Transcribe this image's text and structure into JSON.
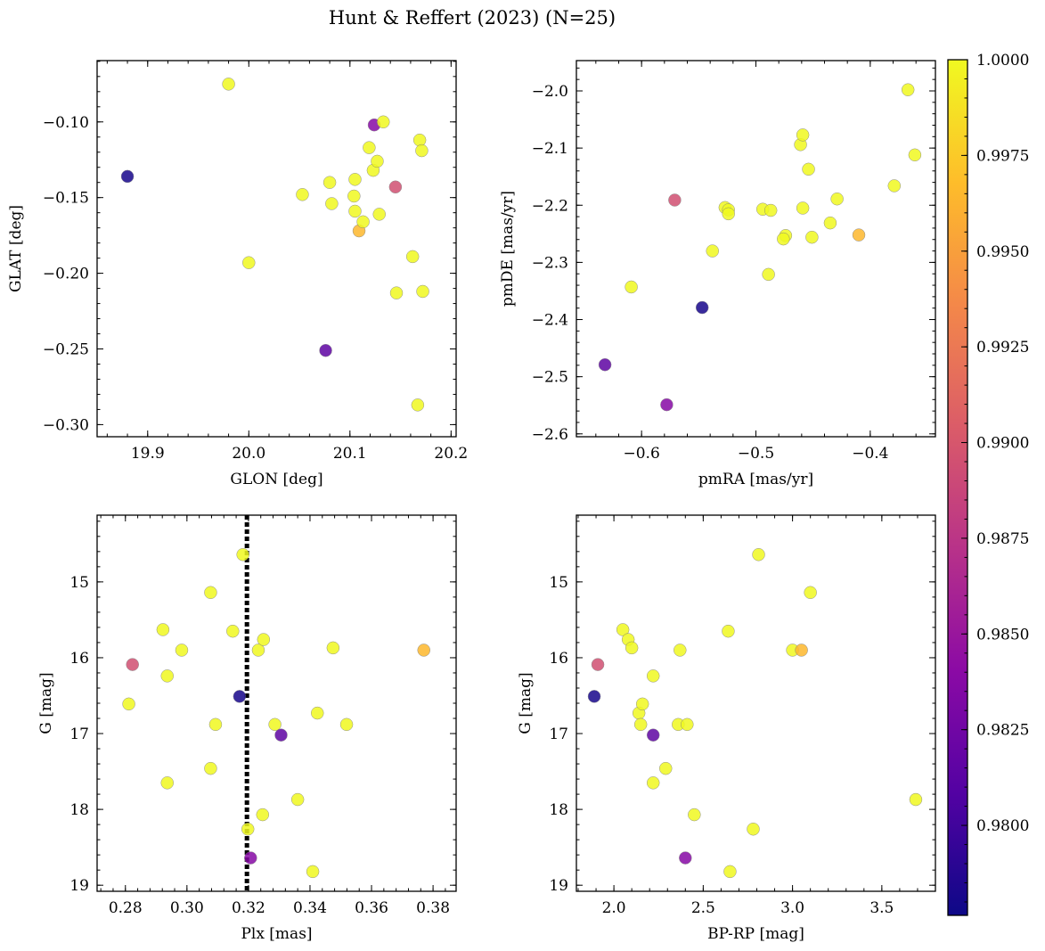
{
  "figure": {
    "suptitle": "Hunt & Reffert (2023) (N=25)"
  },
  "colormap": {
    "name": "plasma",
    "stops": [
      "#0d0887",
      "#5302a3",
      "#8b0aa5",
      "#b83289",
      "#db5c68",
      "#f48849",
      "#febd2a",
      "#f0f921"
    ],
    "range": [
      0.97765,
      1.0
    ],
    "tick_labels": [
      "0.9800",
      "0.9825",
      "0.9850",
      "0.9875",
      "0.9900",
      "0.9925",
      "0.9950",
      "0.9975",
      "1.0000"
    ],
    "tick_values": [
      0.98,
      0.9825,
      0.985,
      0.9875,
      0.99,
      0.9925,
      0.995,
      0.9975,
      1.0
    ]
  },
  "chart_data": [
    {
      "type": "scatter",
      "id": "glon-glat",
      "xlabel": "GLON [deg]",
      "ylabel": "GLAT [deg]",
      "xlim": [
        19.85,
        20.205
      ],
      "ylim": [
        -0.308,
        -0.0595
      ],
      "invert_y": false,
      "xticks": [
        19.9,
        20.0,
        20.1,
        20.2
      ],
      "xtick_labels": [
        "19.9",
        "20.0",
        "20.1",
        "20.2"
      ],
      "xminor_step": 0.02,
      "yticks": [
        -0.3,
        -0.25,
        -0.2,
        -0.15,
        -0.1
      ],
      "ytick_labels": [
        "−0.30",
        "−0.25",
        "−0.20",
        "−0.15",
        "−0.10"
      ],
      "yminor_step": 0.01,
      "points": [
        {
          "x": 19.98,
          "y": -0.075,
          "c": 1.0
        },
        {
          "x": 19.88,
          "y": -0.136,
          "c": 0.9781
        },
        {
          "x": 20.0,
          "y": -0.193,
          "c": 1.0
        },
        {
          "x": 20.053,
          "y": -0.148,
          "c": 1.0
        },
        {
          "x": 20.08,
          "y": -0.14,
          "c": 1.0
        },
        {
          "x": 20.082,
          "y": -0.154,
          "c": 1.0
        },
        {
          "x": 20.076,
          "y": -0.251,
          "c": 0.9815
        },
        {
          "x": 20.105,
          "y": -0.138,
          "c": 1.0
        },
        {
          "x": 20.104,
          "y": -0.149,
          "c": 1.0
        },
        {
          "x": 20.105,
          "y": -0.159,
          "c": 1.0
        },
        {
          "x": 20.109,
          "y": -0.172,
          "c": 0.9965
        },
        {
          "x": 20.113,
          "y": -0.166,
          "c": 1.0
        },
        {
          "x": 20.119,
          "y": -0.117,
          "c": 1.0
        },
        {
          "x": 20.123,
          "y": -0.132,
          "c": 1.0
        },
        {
          "x": 20.127,
          "y": -0.126,
          "c": 1.0
        },
        {
          "x": 20.129,
          "y": -0.161,
          "c": 1.0
        },
        {
          "x": 20.124,
          "y": -0.102,
          "c": 0.9838
        },
        {
          "x": 20.133,
          "y": -0.1,
          "c": 1.0
        },
        {
          "x": 20.145,
          "y": -0.143,
          "c": 0.9895
        },
        {
          "x": 20.146,
          "y": -0.213,
          "c": 1.0
        },
        {
          "x": 20.162,
          "y": -0.189,
          "c": 1.0
        },
        {
          "x": 20.167,
          "y": -0.287,
          "c": 1.0
        },
        {
          "x": 20.169,
          "y": -0.112,
          "c": 1.0
        },
        {
          "x": 20.171,
          "y": -0.119,
          "c": 1.0
        },
        {
          "x": 20.172,
          "y": -0.212,
          "c": 1.0
        }
      ]
    },
    {
      "type": "scatter",
      "id": "pmra-pmde",
      "xlabel": "pmRA [mas/yr]",
      "ylabel": "pmDE [mas/yr]",
      "xlim": [
        -0.657,
        -0.343
      ],
      "ylim": [
        -2.605,
        -1.947
      ],
      "invert_y": false,
      "xticks": [
        -0.6,
        -0.5,
        -0.4
      ],
      "xtick_labels": [
        "−0.6",
        "−0.5",
        "−0.4"
      ],
      "xminor_step": 0.02,
      "yticks": [
        -2.6,
        -2.5,
        -2.4,
        -2.3,
        -2.2,
        -2.1,
        -2.0
      ],
      "ytick_labels": [
        "−2.6",
        "−2.5",
        "−2.4",
        "−2.3",
        "−2.2",
        "−2.1",
        "−2.0"
      ],
      "yminor_step": 0.02,
      "points": [
        {
          "x": -0.632,
          "y": -2.479,
          "c": 0.9815
        },
        {
          "x": -0.609,
          "y": -2.343,
          "c": 1.0
        },
        {
          "x": -0.578,
          "y": -2.549,
          "c": 0.9838
        },
        {
          "x": -0.571,
          "y": -2.191,
          "c": 0.9895
        },
        {
          "x": -0.547,
          "y": -2.379,
          "c": 0.9781
        },
        {
          "x": -0.538,
          "y": -2.28,
          "c": 1.0
        },
        {
          "x": -0.527,
          "y": -2.204,
          "c": 1.0
        },
        {
          "x": -0.524,
          "y": -2.208,
          "c": 1.0
        },
        {
          "x": -0.524,
          "y": -2.215,
          "c": 1.0
        },
        {
          "x": -0.494,
          "y": -2.207,
          "c": 1.0
        },
        {
          "x": -0.487,
          "y": -2.209,
          "c": 1.0
        },
        {
          "x": -0.489,
          "y": -2.321,
          "c": 1.0
        },
        {
          "x": -0.474,
          "y": -2.253,
          "c": 1.0
        },
        {
          "x": -0.476,
          "y": -2.259,
          "c": 1.0
        },
        {
          "x": -0.461,
          "y": -2.094,
          "c": 1.0
        },
        {
          "x": -0.459,
          "y": -2.077,
          "c": 1.0
        },
        {
          "x": -0.459,
          "y": -2.205,
          "c": 1.0
        },
        {
          "x": -0.454,
          "y": -2.137,
          "c": 1.0
        },
        {
          "x": -0.451,
          "y": -2.256,
          "c": 1.0
        },
        {
          "x": -0.435,
          "y": -2.231,
          "c": 1.0
        },
        {
          "x": -0.429,
          "y": -2.189,
          "c": 1.0
        },
        {
          "x": -0.41,
          "y": -2.252,
          "c": 0.9965
        },
        {
          "x": -0.379,
          "y": -2.166,
          "c": 1.0
        },
        {
          "x": -0.367,
          "y": -1.998,
          "c": 1.0
        },
        {
          "x": -0.361,
          "y": -2.112,
          "c": 1.0
        }
      ]
    },
    {
      "type": "scatter",
      "id": "plx-g",
      "xlabel": "Plx [mas]",
      "ylabel": "G [mag]",
      "xlim": [
        0.2708,
        0.3875
      ],
      "ylim": [
        19.08,
        14.12
      ],
      "invert_y": true,
      "xticks": [
        0.28,
        0.3,
        0.32,
        0.34,
        0.36,
        0.38
      ],
      "xtick_labels": [
        "0.28",
        "0.30",
        "0.32",
        "0.34",
        "0.36",
        "0.38"
      ],
      "xminor_step": 0.004,
      "yticks": [
        15,
        16,
        17,
        18,
        19
      ],
      "ytick_labels": [
        "15",
        "16",
        "17",
        "18",
        "19"
      ],
      "yminor_step": 0.2,
      "vline": {
        "x": 0.3195,
        "style": "dotted"
      },
      "points": [
        {
          "x": 0.2811,
          "y": 16.61,
          "c": 1.0
        },
        {
          "x": 0.2823,
          "y": 16.09,
          "c": 0.9895
        },
        {
          "x": 0.2922,
          "y": 15.63,
          "c": 1.0
        },
        {
          "x": 0.2936,
          "y": 16.24,
          "c": 1.0
        },
        {
          "x": 0.2936,
          "y": 17.65,
          "c": 1.0
        },
        {
          "x": 0.2983,
          "y": 15.9,
          "c": 1.0
        },
        {
          "x": 0.3077,
          "y": 15.14,
          "c": 1.0
        },
        {
          "x": 0.3077,
          "y": 17.46,
          "c": 1.0
        },
        {
          "x": 0.3093,
          "y": 16.88,
          "c": 1.0
        },
        {
          "x": 0.3149,
          "y": 15.65,
          "c": 1.0
        },
        {
          "x": 0.3171,
          "y": 16.51,
          "c": 0.9781
        },
        {
          "x": 0.3182,
          "y": 14.64,
          "c": 1.0
        },
        {
          "x": 0.3198,
          "y": 18.26,
          "c": 1.0
        },
        {
          "x": 0.3207,
          "y": 18.64,
          "c": 0.9838
        },
        {
          "x": 0.3232,
          "y": 15.9,
          "c": 1.0
        },
        {
          "x": 0.3246,
          "y": 18.07,
          "c": 1.0
        },
        {
          "x": 0.3249,
          "y": 15.76,
          "c": 1.0
        },
        {
          "x": 0.3286,
          "y": 16.88,
          "c": 1.0
        },
        {
          "x": 0.3306,
          "y": 17.02,
          "c": 0.9815
        },
        {
          "x": 0.336,
          "y": 17.87,
          "c": 1.0
        },
        {
          "x": 0.3409,
          "y": 18.82,
          "c": 1.0
        },
        {
          "x": 0.3424,
          "y": 16.73,
          "c": 1.0
        },
        {
          "x": 0.3475,
          "y": 15.87,
          "c": 1.0
        },
        {
          "x": 0.3519,
          "y": 16.88,
          "c": 1.0
        },
        {
          "x": 0.377,
          "y": 15.9,
          "c": 0.9965
        }
      ]
    },
    {
      "type": "scatter",
      "id": "bprp-g",
      "xlabel": "BP-RP [mag]",
      "ylabel": "G [mag]",
      "xlim": [
        1.79,
        3.8
      ],
      "ylim": [
        19.08,
        14.12
      ],
      "invert_y": true,
      "xticks": [
        2.0,
        2.5,
        3.0,
        3.5
      ],
      "xtick_labels": [
        "2.0",
        "2.5",
        "3.0",
        "3.5"
      ],
      "xminor_step": 0.1,
      "yticks": [
        15,
        16,
        17,
        18,
        19
      ],
      "ytick_labels": [
        "15",
        "16",
        "17",
        "18",
        "19"
      ],
      "yminor_step": 0.2,
      "points": [
        {
          "x": 1.89,
          "y": 16.51,
          "c": 0.9781
        },
        {
          "x": 1.91,
          "y": 16.09,
          "c": 0.9895
        },
        {
          "x": 2.05,
          "y": 15.63,
          "c": 1.0
        },
        {
          "x": 2.08,
          "y": 15.76,
          "c": 1.0
        },
        {
          "x": 2.1,
          "y": 15.87,
          "c": 1.0
        },
        {
          "x": 2.14,
          "y": 16.73,
          "c": 1.0
        },
        {
          "x": 2.15,
          "y": 16.88,
          "c": 1.0
        },
        {
          "x": 2.16,
          "y": 16.61,
          "c": 1.0
        },
        {
          "x": 2.22,
          "y": 17.02,
          "c": 0.9815
        },
        {
          "x": 2.22,
          "y": 16.24,
          "c": 1.0
        },
        {
          "x": 2.22,
          "y": 17.65,
          "c": 1.0
        },
        {
          "x": 2.29,
          "y": 17.46,
          "c": 1.0
        },
        {
          "x": 2.36,
          "y": 16.88,
          "c": 1.0
        },
        {
          "x": 2.37,
          "y": 15.9,
          "c": 1.0
        },
        {
          "x": 2.4,
          "y": 18.64,
          "c": 0.9838
        },
        {
          "x": 2.41,
          "y": 16.88,
          "c": 1.0
        },
        {
          "x": 2.45,
          "y": 18.07,
          "c": 1.0
        },
        {
          "x": 2.64,
          "y": 15.65,
          "c": 1.0
        },
        {
          "x": 2.65,
          "y": 18.82,
          "c": 1.0
        },
        {
          "x": 2.78,
          "y": 18.26,
          "c": 1.0
        },
        {
          "x": 2.81,
          "y": 14.64,
          "c": 1.0
        },
        {
          "x": 3.0,
          "y": 15.9,
          "c": 1.0
        },
        {
          "x": 3.05,
          "y": 15.9,
          "c": 0.9965
        },
        {
          "x": 3.1,
          "y": 15.14,
          "c": 1.0
        },
        {
          "x": 3.69,
          "y": 17.87,
          "c": 1.0
        }
      ]
    }
  ]
}
